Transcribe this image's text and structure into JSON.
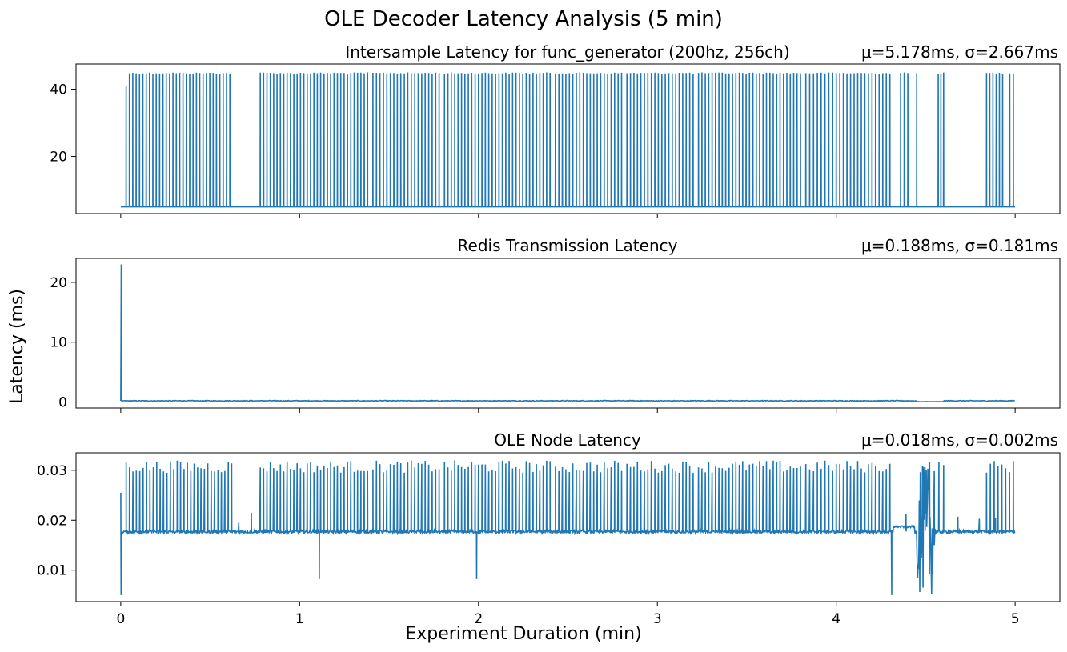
{
  "chart_data": {
    "type": "line",
    "title": "OLE Decoder Latency Analysis (5 min)",
    "xlabel": "Experiment Duration (min)",
    "ylabel": "Latency (ms)",
    "xlim": [
      -0.25,
      5.25
    ],
    "xticks": [
      0,
      1,
      2,
      3,
      4,
      5
    ],
    "sharex": true,
    "grid": false,
    "series_color": "#1f77b4",
    "subplots": [
      {
        "title": "Intersample Latency for func_generator (200hz, 256ch)",
        "stats": "μ=5.178ms, σ=2.667ms",
        "ylim": [
          3.0,
          47.5
        ],
        "yticks": [
          20,
          40
        ],
        "baseline": 5.0,
        "spike_value": 45.0,
        "first_spike": {
          "x": 0.03,
          "y": 41.0
        },
        "spike_segments": [
          {
            "start": 0.03,
            "end": 0.61,
            "count": 32
          },
          {
            "start": 0.78,
            "end": 1.38,
            "count": 33
          },
          {
            "start": 1.41,
            "end": 1.78,
            "count": 20
          },
          {
            "start": 1.81,
            "end": 2.4,
            "count": 32
          },
          {
            "start": 2.43,
            "end": 2.8,
            "count": 20
          },
          {
            "start": 2.83,
            "end": 3.2,
            "count": 20
          },
          {
            "start": 3.23,
            "end": 3.8,
            "count": 31
          },
          {
            "start": 3.83,
            "end": 3.98,
            "count": 8
          },
          {
            "start": 4.0,
            "end": 4.3,
            "count": 16
          },
          {
            "start": 4.36,
            "end": 4.4,
            "count": 3
          },
          {
            "start": 4.45,
            "end": 4.45,
            "count": 1
          },
          {
            "start": 4.57,
            "end": 4.6,
            "count": 3
          },
          {
            "start": 4.84,
            "end": 4.93,
            "count": 6
          },
          {
            "start": 4.97,
            "end": 4.99,
            "count": 2
          }
        ]
      },
      {
        "title": "Redis Transmission Latency",
        "stats": "μ=0.188ms, σ=0.181ms",
        "ylim": [
          -1.0,
          24.0
        ],
        "yticks": [
          0,
          10,
          20
        ],
        "initial_spike": 23.0,
        "baseline": 0.2,
        "dip_region": {
          "start": 4.45,
          "end": 4.6,
          "value": 0.05
        }
      },
      {
        "title": "OLE Node Latency",
        "stats": "μ=0.018ms, σ=0.002ms",
        "ylim": [
          0.0037,
          0.0335
        ],
        "yticks": [
          0.01,
          0.02,
          0.03
        ],
        "baseline": 0.0177,
        "spike_range": [
          0.0295,
          0.032
        ],
        "initial_spike": 0.0255,
        "initial_dip": 0.005,
        "dips": [
          {
            "x": 1.11,
            "y": 0.0082
          },
          {
            "x": 1.99,
            "y": 0.0082
          },
          {
            "x": 4.31,
            "y": 0.005
          }
        ],
        "noisy_region": {
          "start": 4.45,
          "end": 4.55,
          "low": 0.005,
          "high": 0.031
        },
        "elevated_region": {
          "start": 4.32,
          "end": 4.44,
          "value": 0.0187
        },
        "mid_spikes": [
          {
            "x": 0.66,
            "y": 0.0195
          },
          {
            "x": 0.73,
            "y": 0.0215
          },
          {
            "x": 4.39,
            "y": 0.0212
          },
          {
            "x": 4.68,
            "y": 0.0207
          },
          {
            "x": 4.8,
            "y": 0.0203
          },
          {
            "x": 4.89,
            "y": 0.0205
          }
        ],
        "spike_segments": [
          {
            "start": 0.03,
            "end": 0.62,
            "count": 32
          },
          {
            "start": 0.78,
            "end": 1.38,
            "count": 33
          },
          {
            "start": 1.41,
            "end": 1.78,
            "count": 20
          },
          {
            "start": 1.81,
            "end": 2.4,
            "count": 32
          },
          {
            "start": 2.43,
            "end": 2.8,
            "count": 20
          },
          {
            "start": 2.83,
            "end": 3.2,
            "count": 20
          },
          {
            "start": 3.23,
            "end": 3.8,
            "count": 31
          },
          {
            "start": 3.83,
            "end": 3.98,
            "count": 8
          },
          {
            "start": 4.0,
            "end": 4.3,
            "count": 16
          },
          {
            "start": 4.47,
            "end": 4.6,
            "count": 6
          },
          {
            "start": 4.84,
            "end": 4.99,
            "count": 8
          }
        ]
      }
    ]
  }
}
